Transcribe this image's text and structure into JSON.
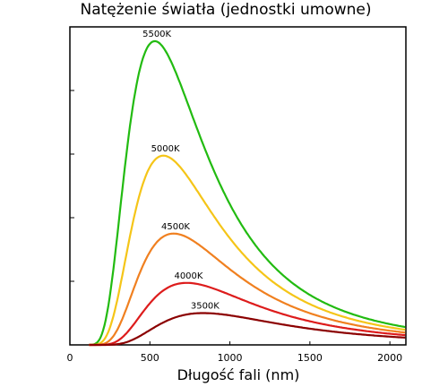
{
  "chart_data": {
    "type": "line",
    "title": "Natężenie światła (jednostki umowne)",
    "xlabel": "Długość fali (nm)",
    "ylabel": "",
    "xlim": [
      0,
      2100
    ],
    "ylim": [
      0,
      1
    ],
    "x_ticks": [
      0,
      500,
      1000,
      1500,
      2000
    ],
    "y_ticks_count": 5,
    "grid": false,
    "legend": "labels above curve peaks",
    "series": [
      {
        "name": "5500K",
        "temperature_k": 5500,
        "peak_x": 527,
        "peak_y": 0.955,
        "color": "#22bb11"
      },
      {
        "name": "5000K",
        "temperature_k": 5000,
        "peak_x": 580,
        "peak_y": 0.595,
        "color": "#f5c518"
      },
      {
        "name": "4500K",
        "temperature_k": 4500,
        "peak_x": 644,
        "peak_y": 0.35,
        "color": "#f08020"
      },
      {
        "name": "4000K",
        "temperature_k": 4000,
        "peak_x": 725,
        "peak_y": 0.195,
        "color": "#dd1c1c"
      },
      {
        "name": "3500K",
        "temperature_k": 3500,
        "peak_x": 828,
        "peak_y": 0.1,
        "color": "#8b0000"
      }
    ]
  }
}
